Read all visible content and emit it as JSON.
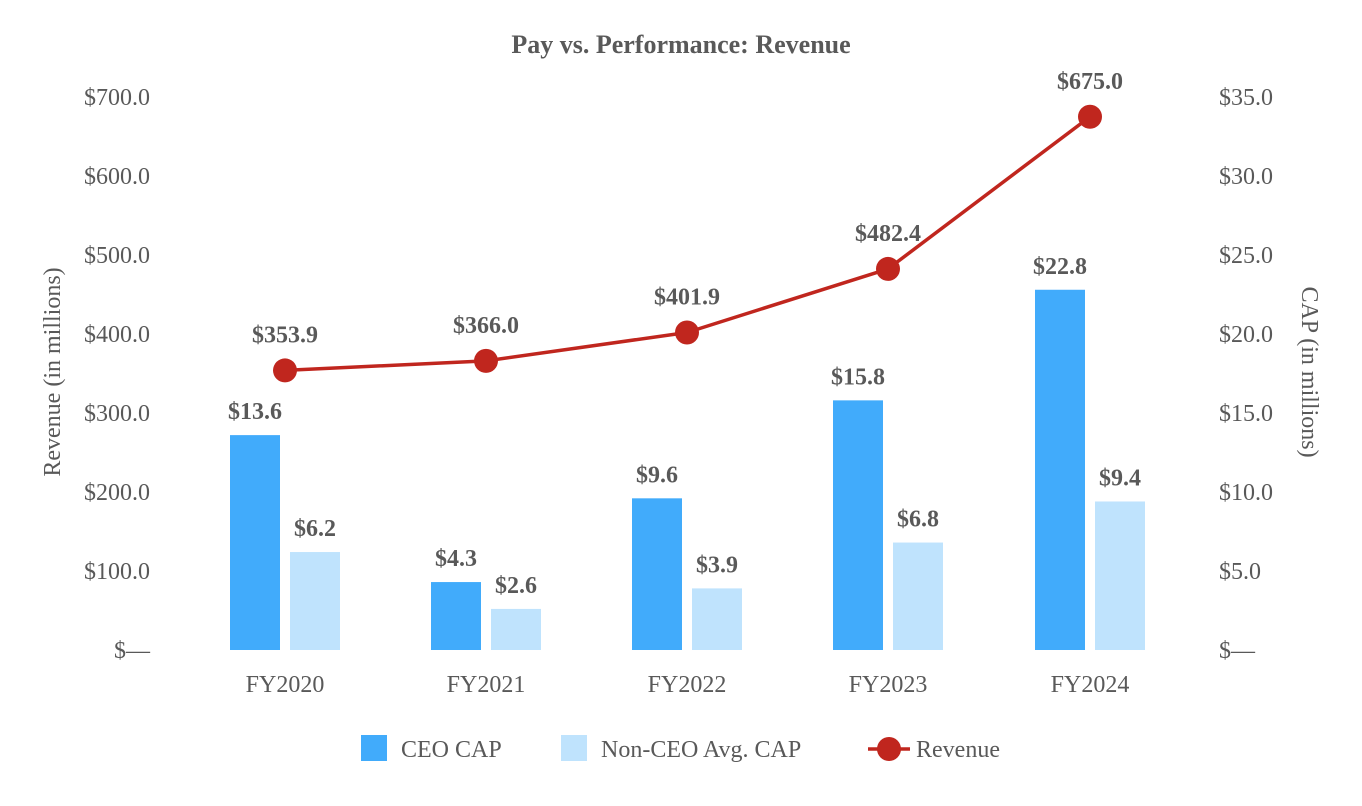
{
  "chart_data": {
    "type": "bar",
    "title": "Pay vs. Performance: Revenue",
    "categories": [
      "FY2020",
      "FY2021",
      "FY2022",
      "FY2023",
      "FY2024"
    ],
    "series": [
      {
        "name": "CEO CAP",
        "kind": "bar",
        "axis": "right",
        "color": "#41ABFB",
        "values": [
          13.6,
          4.3,
          9.6,
          15.8,
          22.8
        ],
        "labels": [
          "$13.6",
          "$4.3",
          "$9.6",
          "$15.8",
          "$22.8"
        ]
      },
      {
        "name": "Non-CEO Avg. CAP",
        "kind": "bar",
        "axis": "right",
        "color": "#BFE3FD",
        "values": [
          6.2,
          2.6,
          3.9,
          6.8,
          9.4
        ],
        "labels": [
          "$6.2",
          "$2.6",
          "$3.9",
          "$6.8",
          "$9.4"
        ]
      },
      {
        "name": "Revenue",
        "kind": "line",
        "axis": "left",
        "color": "#C0261E",
        "values": [
          353.9,
          366.0,
          401.9,
          482.4,
          675.0
        ],
        "labels": [
          "$353.9",
          "$366.0",
          "$401.9",
          "$482.4",
          "$675.0"
        ]
      }
    ],
    "y_left": {
      "label": "Revenue (in millions)",
      "range": [
        0,
        700
      ],
      "ticks": [
        0,
        100,
        200,
        300,
        400,
        500,
        600,
        700
      ],
      "tick_labels": [
        "$—",
        "$100.0",
        "$200.0",
        "$300.0",
        "$400.0",
        "$500.0",
        "$600.0",
        "$700.0"
      ]
    },
    "y_right": {
      "label": "CAP (in millions)",
      "range": [
        0,
        35
      ],
      "ticks": [
        0,
        5,
        10,
        15,
        20,
        25,
        30,
        35
      ],
      "tick_labels": [
        "$—",
        "$5.0",
        "$10.0",
        "$15.0",
        "$20.0",
        "$25.0",
        "$30.0",
        "$35.0"
      ]
    },
    "legend": {
      "position": "bottom",
      "items": [
        "CEO CAP",
        "Non-CEO Avg. CAP",
        "Revenue"
      ]
    },
    "grid": false
  }
}
